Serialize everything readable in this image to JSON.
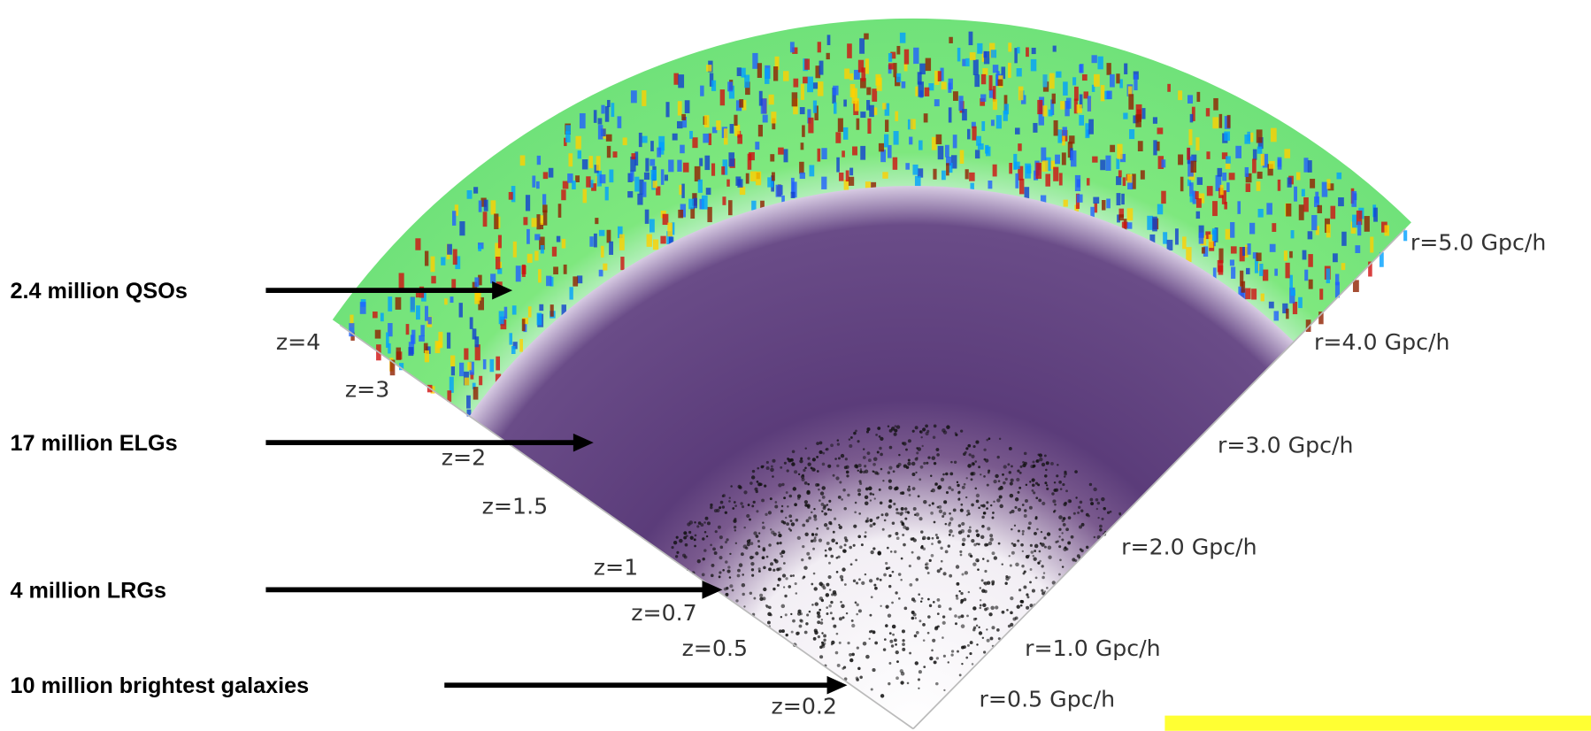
{
  "annotations": [
    "2.4 million QSOs",
    "17 million ELGs",
    "4 million LRGs",
    "10 million brightest galaxies"
  ],
  "redshift_labels": [
    "z=4",
    "z=3",
    "z=2",
    "z=1.5",
    "z=1",
    "z=0.7",
    "z=0.5",
    "z=0.2"
  ],
  "distance_labels": [
    "r=5.0 Gpc/h",
    "r=4.0 Gpc/h",
    "r=3.0 Gpc/h",
    "r=2.0 Gpc/h",
    "r=1.0 Gpc/h",
    "r=0.5 Gpc/h"
  ]
}
